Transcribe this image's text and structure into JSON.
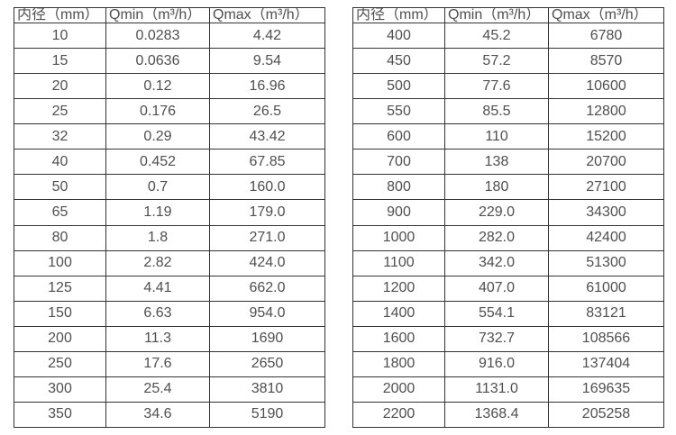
{
  "colors": {
    "border": "#333333",
    "text": "#4f4f4f",
    "background": "#ffffff"
  },
  "table_left": {
    "headers": [
      "内径（mm）",
      "Qmin（m³/h）",
      "Qmax（m³/h）"
    ],
    "rows": [
      [
        "10",
        "0.0283",
        "4.42"
      ],
      [
        "15",
        "0.0636",
        "9.54"
      ],
      [
        "20",
        "0.12",
        "16.96"
      ],
      [
        "25",
        "0.176",
        "26.5"
      ],
      [
        "32",
        "0.29",
        "43.42"
      ],
      [
        "40",
        "0.452",
        "67.85"
      ],
      [
        "50",
        "0.7",
        "160.0"
      ],
      [
        "65",
        "1.19",
        "179.0"
      ],
      [
        "80",
        "1.8",
        "271.0"
      ],
      [
        "100",
        "2.82",
        "424.0"
      ],
      [
        "125",
        "4.41",
        "662.0"
      ],
      [
        "150",
        "6.63",
        "954.0"
      ],
      [
        "200",
        "11.3",
        "1690"
      ],
      [
        "250",
        "17.6",
        "2650"
      ],
      [
        "300",
        "25.4",
        "3810"
      ],
      [
        "350",
        "34.6",
        "5190"
      ]
    ]
  },
  "table_right": {
    "headers": [
      "内径（mm）",
      "Qmin（m³/h）",
      "Qmax（m³/h）"
    ],
    "rows": [
      [
        "400",
        "45.2",
        "6780"
      ],
      [
        "450",
        "57.2",
        "8570"
      ],
      [
        "500",
        "77.6",
        "10600"
      ],
      [
        "550",
        "85.5",
        "12800"
      ],
      [
        "600",
        "110",
        "15200"
      ],
      [
        "700",
        "138",
        "20700"
      ],
      [
        "800",
        "180",
        "27100"
      ],
      [
        "900",
        "229.0",
        "34300"
      ],
      [
        "1000",
        "282.0",
        "42400"
      ],
      [
        "1100",
        "342.0",
        "51300"
      ],
      [
        "1200",
        "407.0",
        "61000"
      ],
      [
        "1400",
        "554.1",
        "83121"
      ],
      [
        "1600",
        "732.7",
        "108566"
      ],
      [
        "1800",
        "916.0",
        "137404"
      ],
      [
        "2000",
        "1131.0",
        "169635"
      ],
      [
        "2200",
        "1368.4",
        "205258"
      ]
    ]
  }
}
